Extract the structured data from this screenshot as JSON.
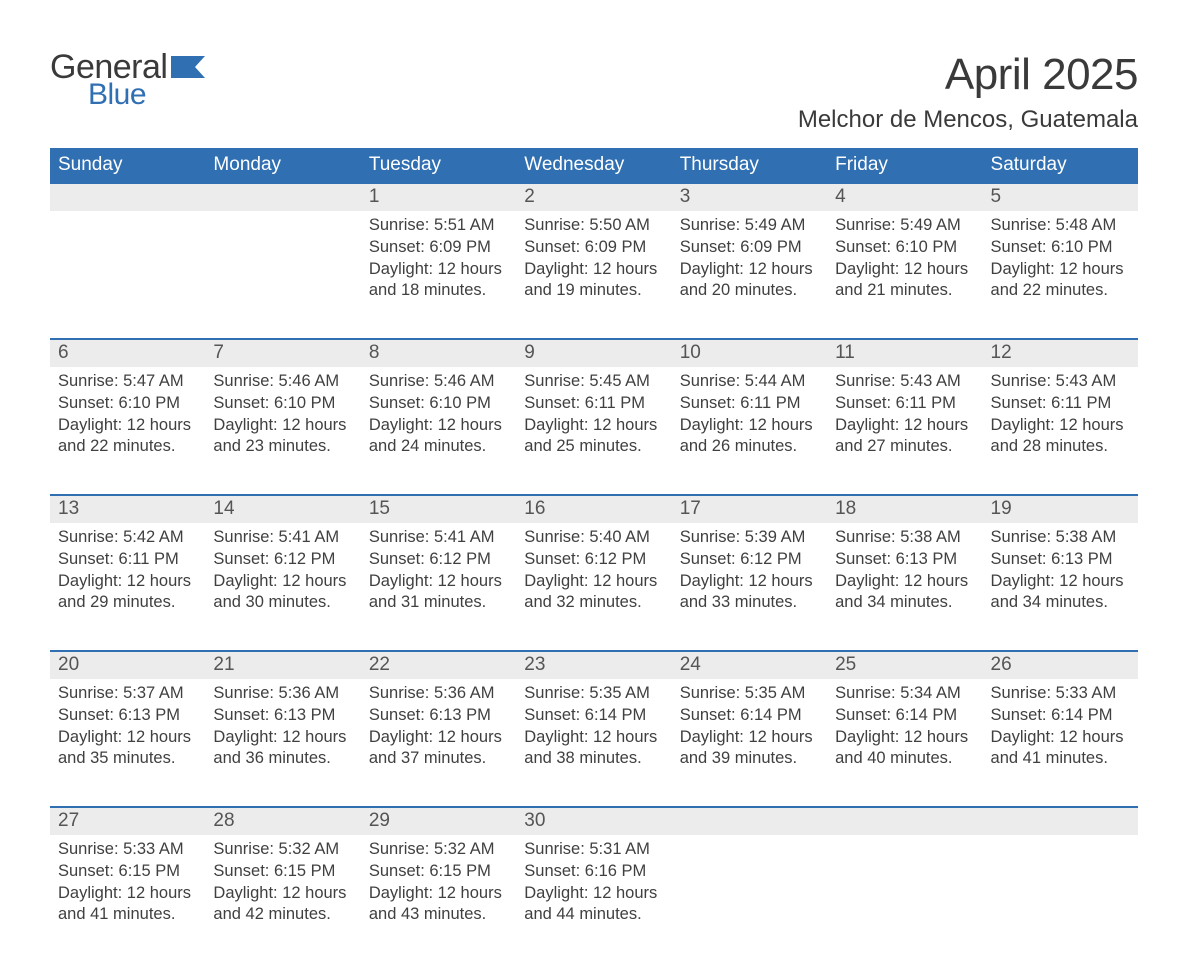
{
  "brand": {
    "word1": "General",
    "word2": "Blue"
  },
  "title": "April 2025",
  "subtitle": "Melchor de Mencos, Guatemala",
  "colors": {
    "header_bg": "#2f6fb2",
    "header_text": "#ffffff",
    "daynum_bg": "#ececec",
    "row_divider": "#2f6fb2",
    "body_text": "#404040",
    "page_bg": "#ffffff",
    "logo_gray": "#3a3a3a",
    "logo_blue": "#2f6fb2"
  },
  "typography": {
    "title_fontsize": 44,
    "subtitle_fontsize": 24,
    "header_fontsize": 19,
    "daynum_fontsize": 19,
    "cell_fontsize": 16.5,
    "font_family": "Segoe UI"
  },
  "day_headers": [
    "Sunday",
    "Monday",
    "Tuesday",
    "Wednesday",
    "Thursday",
    "Friday",
    "Saturday"
  ],
  "weeks": [
    [
      null,
      null,
      {
        "n": "1",
        "sunrise": "Sunrise: 5:51 AM",
        "sunset": "Sunset: 6:09 PM",
        "day1": "Daylight: 12 hours",
        "day2": "and 18 minutes."
      },
      {
        "n": "2",
        "sunrise": "Sunrise: 5:50 AM",
        "sunset": "Sunset: 6:09 PM",
        "day1": "Daylight: 12 hours",
        "day2": "and 19 minutes."
      },
      {
        "n": "3",
        "sunrise": "Sunrise: 5:49 AM",
        "sunset": "Sunset: 6:09 PM",
        "day1": "Daylight: 12 hours",
        "day2": "and 20 minutes."
      },
      {
        "n": "4",
        "sunrise": "Sunrise: 5:49 AM",
        "sunset": "Sunset: 6:10 PM",
        "day1": "Daylight: 12 hours",
        "day2": "and 21 minutes."
      },
      {
        "n": "5",
        "sunrise": "Sunrise: 5:48 AM",
        "sunset": "Sunset: 6:10 PM",
        "day1": "Daylight: 12 hours",
        "day2": "and 22 minutes."
      }
    ],
    [
      {
        "n": "6",
        "sunrise": "Sunrise: 5:47 AM",
        "sunset": "Sunset: 6:10 PM",
        "day1": "Daylight: 12 hours",
        "day2": "and 22 minutes."
      },
      {
        "n": "7",
        "sunrise": "Sunrise: 5:46 AM",
        "sunset": "Sunset: 6:10 PM",
        "day1": "Daylight: 12 hours",
        "day2": "and 23 minutes."
      },
      {
        "n": "8",
        "sunrise": "Sunrise: 5:46 AM",
        "sunset": "Sunset: 6:10 PM",
        "day1": "Daylight: 12 hours",
        "day2": "and 24 minutes."
      },
      {
        "n": "9",
        "sunrise": "Sunrise: 5:45 AM",
        "sunset": "Sunset: 6:11 PM",
        "day1": "Daylight: 12 hours",
        "day2": "and 25 minutes."
      },
      {
        "n": "10",
        "sunrise": "Sunrise: 5:44 AM",
        "sunset": "Sunset: 6:11 PM",
        "day1": "Daylight: 12 hours",
        "day2": "and 26 minutes."
      },
      {
        "n": "11",
        "sunrise": "Sunrise: 5:43 AM",
        "sunset": "Sunset: 6:11 PM",
        "day1": "Daylight: 12 hours",
        "day2": "and 27 minutes."
      },
      {
        "n": "12",
        "sunrise": "Sunrise: 5:43 AM",
        "sunset": "Sunset: 6:11 PM",
        "day1": "Daylight: 12 hours",
        "day2": "and 28 minutes."
      }
    ],
    [
      {
        "n": "13",
        "sunrise": "Sunrise: 5:42 AM",
        "sunset": "Sunset: 6:11 PM",
        "day1": "Daylight: 12 hours",
        "day2": "and 29 minutes."
      },
      {
        "n": "14",
        "sunrise": "Sunrise: 5:41 AM",
        "sunset": "Sunset: 6:12 PM",
        "day1": "Daylight: 12 hours",
        "day2": "and 30 minutes."
      },
      {
        "n": "15",
        "sunrise": "Sunrise: 5:41 AM",
        "sunset": "Sunset: 6:12 PM",
        "day1": "Daylight: 12 hours",
        "day2": "and 31 minutes."
      },
      {
        "n": "16",
        "sunrise": "Sunrise: 5:40 AM",
        "sunset": "Sunset: 6:12 PM",
        "day1": "Daylight: 12 hours",
        "day2": "and 32 minutes."
      },
      {
        "n": "17",
        "sunrise": "Sunrise: 5:39 AM",
        "sunset": "Sunset: 6:12 PM",
        "day1": "Daylight: 12 hours",
        "day2": "and 33 minutes."
      },
      {
        "n": "18",
        "sunrise": "Sunrise: 5:38 AM",
        "sunset": "Sunset: 6:13 PM",
        "day1": "Daylight: 12 hours",
        "day2": "and 34 minutes."
      },
      {
        "n": "19",
        "sunrise": "Sunrise: 5:38 AM",
        "sunset": "Sunset: 6:13 PM",
        "day1": "Daylight: 12 hours",
        "day2": "and 34 minutes."
      }
    ],
    [
      {
        "n": "20",
        "sunrise": "Sunrise: 5:37 AM",
        "sunset": "Sunset: 6:13 PM",
        "day1": "Daylight: 12 hours",
        "day2": "and 35 minutes."
      },
      {
        "n": "21",
        "sunrise": "Sunrise: 5:36 AM",
        "sunset": "Sunset: 6:13 PM",
        "day1": "Daylight: 12 hours",
        "day2": "and 36 minutes."
      },
      {
        "n": "22",
        "sunrise": "Sunrise: 5:36 AM",
        "sunset": "Sunset: 6:13 PM",
        "day1": "Daylight: 12 hours",
        "day2": "and 37 minutes."
      },
      {
        "n": "23",
        "sunrise": "Sunrise: 5:35 AM",
        "sunset": "Sunset: 6:14 PM",
        "day1": "Daylight: 12 hours",
        "day2": "and 38 minutes."
      },
      {
        "n": "24",
        "sunrise": "Sunrise: 5:35 AM",
        "sunset": "Sunset: 6:14 PM",
        "day1": "Daylight: 12 hours",
        "day2": "and 39 minutes."
      },
      {
        "n": "25",
        "sunrise": "Sunrise: 5:34 AM",
        "sunset": "Sunset: 6:14 PM",
        "day1": "Daylight: 12 hours",
        "day2": "and 40 minutes."
      },
      {
        "n": "26",
        "sunrise": "Sunrise: 5:33 AM",
        "sunset": "Sunset: 6:14 PM",
        "day1": "Daylight: 12 hours",
        "day2": "and 41 minutes."
      }
    ],
    [
      {
        "n": "27",
        "sunrise": "Sunrise: 5:33 AM",
        "sunset": "Sunset: 6:15 PM",
        "day1": "Daylight: 12 hours",
        "day2": "and 41 minutes."
      },
      {
        "n": "28",
        "sunrise": "Sunrise: 5:32 AM",
        "sunset": "Sunset: 6:15 PM",
        "day1": "Daylight: 12 hours",
        "day2": "and 42 minutes."
      },
      {
        "n": "29",
        "sunrise": "Sunrise: 5:32 AM",
        "sunset": "Sunset: 6:15 PM",
        "day1": "Daylight: 12 hours",
        "day2": "and 43 minutes."
      },
      {
        "n": "30",
        "sunrise": "Sunrise: 5:31 AM",
        "sunset": "Sunset: 6:16 PM",
        "day1": "Daylight: 12 hours",
        "day2": "and 44 minutes."
      },
      null,
      null,
      null
    ]
  ]
}
